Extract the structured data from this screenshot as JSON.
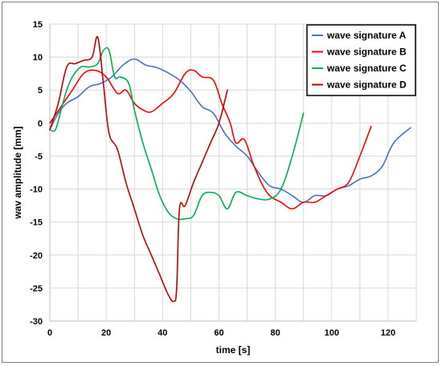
{
  "chart_data": {
    "type": "line",
    "title": "",
    "xlabel": "time [s]",
    "ylabel": "wav amplitude [mm]",
    "xlim": [
      0,
      130
    ],
    "ylim": [
      -30,
      15
    ],
    "xticks": [
      0,
      20,
      40,
      60,
      80,
      100,
      120
    ],
    "yticks": [
      15,
      10,
      5,
      0,
      -5,
      -10,
      -15,
      -20,
      -25,
      -30
    ],
    "grid": "horizontal-and-vertical",
    "legend_position": "top-right",
    "series": [
      {
        "name": "wave signature A",
        "color": "#4472c4",
        "x": [
          0,
          3,
          6,
          10,
          14,
          18,
          22,
          26,
          30,
          34,
          38,
          42,
          46,
          50,
          54,
          58,
          62,
          66,
          70,
          74,
          78,
          82,
          86,
          90,
          94,
          98,
          102,
          106,
          110,
          114,
          118,
          122,
          128
        ],
        "y": [
          -1,
          1.5,
          3,
          4,
          5.5,
          6,
          7,
          8.8,
          9.7,
          8.8,
          8.4,
          7.6,
          6.5,
          4.8,
          2.5,
          1.5,
          -1.5,
          -3.5,
          -5,
          -7.5,
          -9.5,
          -10,
          -11,
          -12,
          -11,
          -11,
          -10,
          -9.5,
          -8.5,
          -8,
          -6.5,
          -3,
          -0.7
        ]
      },
      {
        "name": "wave signature B",
        "color": "#ff0000",
        "x": [
          0,
          4,
          8,
          12,
          16,
          20,
          24,
          27,
          30,
          33,
          36,
          40,
          44,
          48,
          51,
          54,
          58,
          61,
          64,
          66,
          69,
          72,
          75,
          78,
          82,
          86,
          90,
          94,
          98,
          102,
          106,
          110,
          114
        ],
        "y": [
          0,
          2.5,
          5,
          7.5,
          8,
          7,
          4.5,
          5,
          3,
          2,
          1.7,
          3,
          4.5,
          7.5,
          8,
          7,
          6.5,
          3,
          0,
          -3,
          -2.5,
          -6,
          -9,
          -11,
          -12,
          -13,
          -12,
          -12,
          -11,
          -10,
          -9,
          -5,
          -0.5
        ]
      },
      {
        "name": "wave signature C",
        "color": "#00b050",
        "x": [
          0,
          2,
          4,
          6,
          8,
          11,
          14,
          17,
          19,
          21,
          23,
          25,
          28,
          30,
          33,
          36,
          39,
          42,
          45,
          48,
          51,
          54,
          57,
          60,
          63,
          66,
          70,
          74,
          78,
          82,
          86,
          90
        ],
        "y": [
          -1,
          -1,
          2,
          5,
          7,
          8.5,
          8.5,
          9,
          11,
          11,
          7,
          7,
          6,
          2,
          -3,
          -7,
          -11,
          -13.5,
          -14.5,
          -14.5,
          -14,
          -11,
          -10.5,
          -11,
          -13,
          -10.5,
          -11,
          -11.5,
          -11.5,
          -10,
          -5,
          1.5
        ]
      },
      {
        "name": "wave signature D",
        "color": "#c00000",
        "x": [
          0,
          3,
          6,
          9,
          12,
          15,
          17,
          19,
          21,
          24,
          27,
          30,
          33,
          36,
          39,
          42,
          44,
          45,
          46,
          48,
          51,
          54,
          57,
          60,
          63
        ],
        "y": [
          -1,
          3,
          8.5,
          9,
          9.5,
          10,
          13,
          6,
          -1.5,
          -4,
          -9,
          -13,
          -17,
          -20,
          -23,
          -26,
          -27,
          -25,
          -13,
          -12.5,
          -9,
          -6,
          -3,
          0,
          5
        ]
      }
    ]
  }
}
